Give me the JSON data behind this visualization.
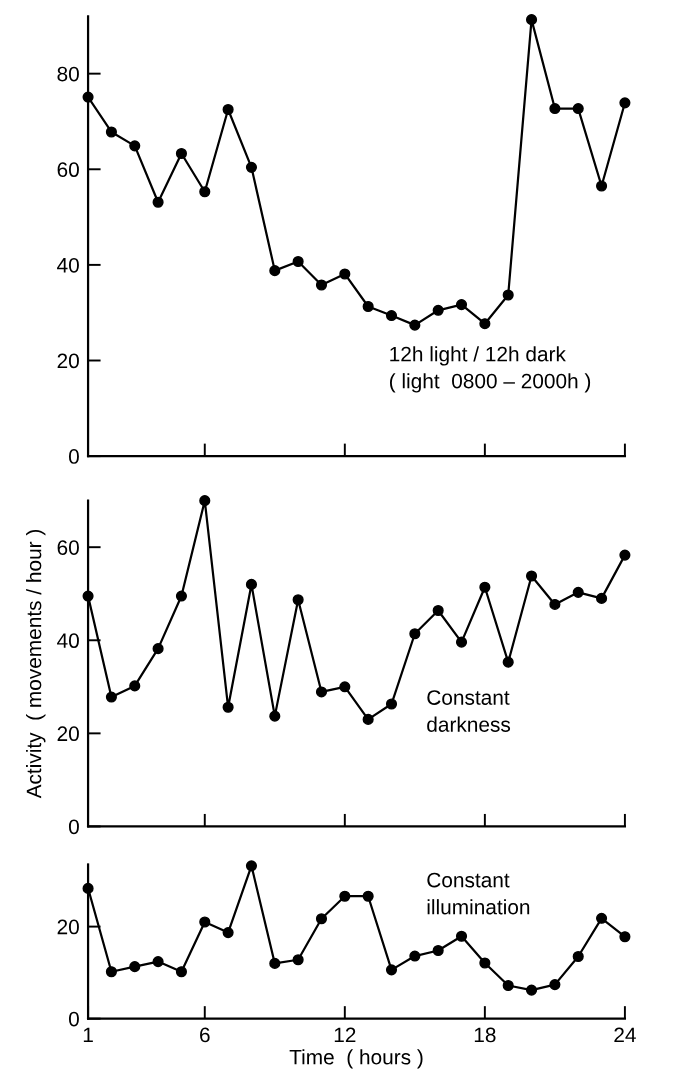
{
  "chart_data": [
    {
      "type": "line",
      "x": [
        1,
        2,
        3,
        4,
        5,
        6,
        7,
        8,
        9,
        10,
        11,
        12,
        13,
        14,
        15,
        16,
        17,
        18,
        19,
        20,
        21,
        22,
        23,
        24
      ],
      "series": [
        {
          "color": "#000000",
          "values": [
            75.1,
            67.8,
            64.9,
            53.1,
            63.3,
            55.3,
            72.5,
            60.4,
            38.8,
            40.7,
            35.8,
            38.1,
            31.3,
            29.4,
            27.4,
            30.5,
            31.7,
            27.7,
            33.7,
            91.3,
            72.7,
            72.7,
            56.5,
            73.9
          ]
        }
      ],
      "xlim": [
        1,
        24
      ],
      "xticks": [
        {
          "value": 6,
          "label": null
        },
        {
          "value": 12,
          "label": null
        },
        {
          "value": 18,
          "label": null
        },
        {
          "value": 24,
          "label": null
        }
      ],
      "ylim": [
        0,
        92
      ],
      "yticks": [
        0,
        20,
        40,
        60,
        80
      ],
      "tick_labels": "y",
      "marker": "circle",
      "line_style": "solid",
      "grid": false,
      "legend": false,
      "annotations": [
        "12h light / 12h dark\n( light  0800 – 2000h )"
      ]
    },
    {
      "type": "line",
      "x": [
        1,
        2,
        3,
        4,
        5,
        6,
        7,
        8,
        9,
        10,
        11,
        12,
        13,
        14,
        15,
        16,
        17,
        18,
        19,
        20,
        21,
        22,
        23,
        24
      ],
      "series": [
        {
          "color": "#000000",
          "values": [
            49.5,
            27.8,
            30.2,
            38.2,
            49.5,
            70,
            25.6,
            52,
            23.7,
            48.7,
            28.9,
            30,
            23,
            26.3,
            41.4,
            46.4,
            39.6,
            51.4,
            35.3,
            53.8,
            47.7,
            50.3,
            49,
            58.3
          ]
        }
      ],
      "xlim": [
        1,
        24
      ],
      "xticks": [
        {
          "value": 6,
          "label": null
        },
        {
          "value": 12,
          "label": null
        },
        {
          "value": 18,
          "label": null
        },
        {
          "value": 24,
          "label": null
        }
      ],
      "ylim": [
        0,
        70
      ],
      "yticks": [
        0,
        20,
        40,
        60
      ],
      "tick_labels": "y",
      "marker": "circle",
      "line_style": "solid",
      "grid": false,
      "legend": false,
      "ylabel": "Activity  ( movements / hour )",
      "annotations": [
        "Constant\ndarkness"
      ]
    },
    {
      "type": "line",
      "x": [
        1,
        2,
        3,
        4,
        5,
        6,
        7,
        8,
        9,
        10,
        11,
        12,
        13,
        14,
        15,
        16,
        17,
        18,
        19,
        20,
        21,
        22,
        23,
        24
      ],
      "series": [
        {
          "color": "#000000",
          "values": [
            28.3,
            10.2,
            11.3,
            12.4,
            10.2,
            21,
            18.7,
            33.2,
            12,
            12.8,
            21.7,
            26.6,
            26.6,
            10.6,
            13.6,
            14.8,
            17.9,
            12.1,
            7.2,
            6.2,
            7.4,
            13.5,
            21.8,
            17.8
          ]
        }
      ],
      "xlim": [
        1,
        24
      ],
      "xticks": [
        1,
        6,
        12,
        18,
        24
      ],
      "ylim": [
        0,
        33.5
      ],
      "yticks": [
        0,
        20
      ],
      "marker": "circle",
      "line_style": "solid",
      "grid": false,
      "legend": false,
      "xlabel": "Time  ( hours )",
      "annotations": [
        "Constant\nillumination"
      ]
    }
  ]
}
